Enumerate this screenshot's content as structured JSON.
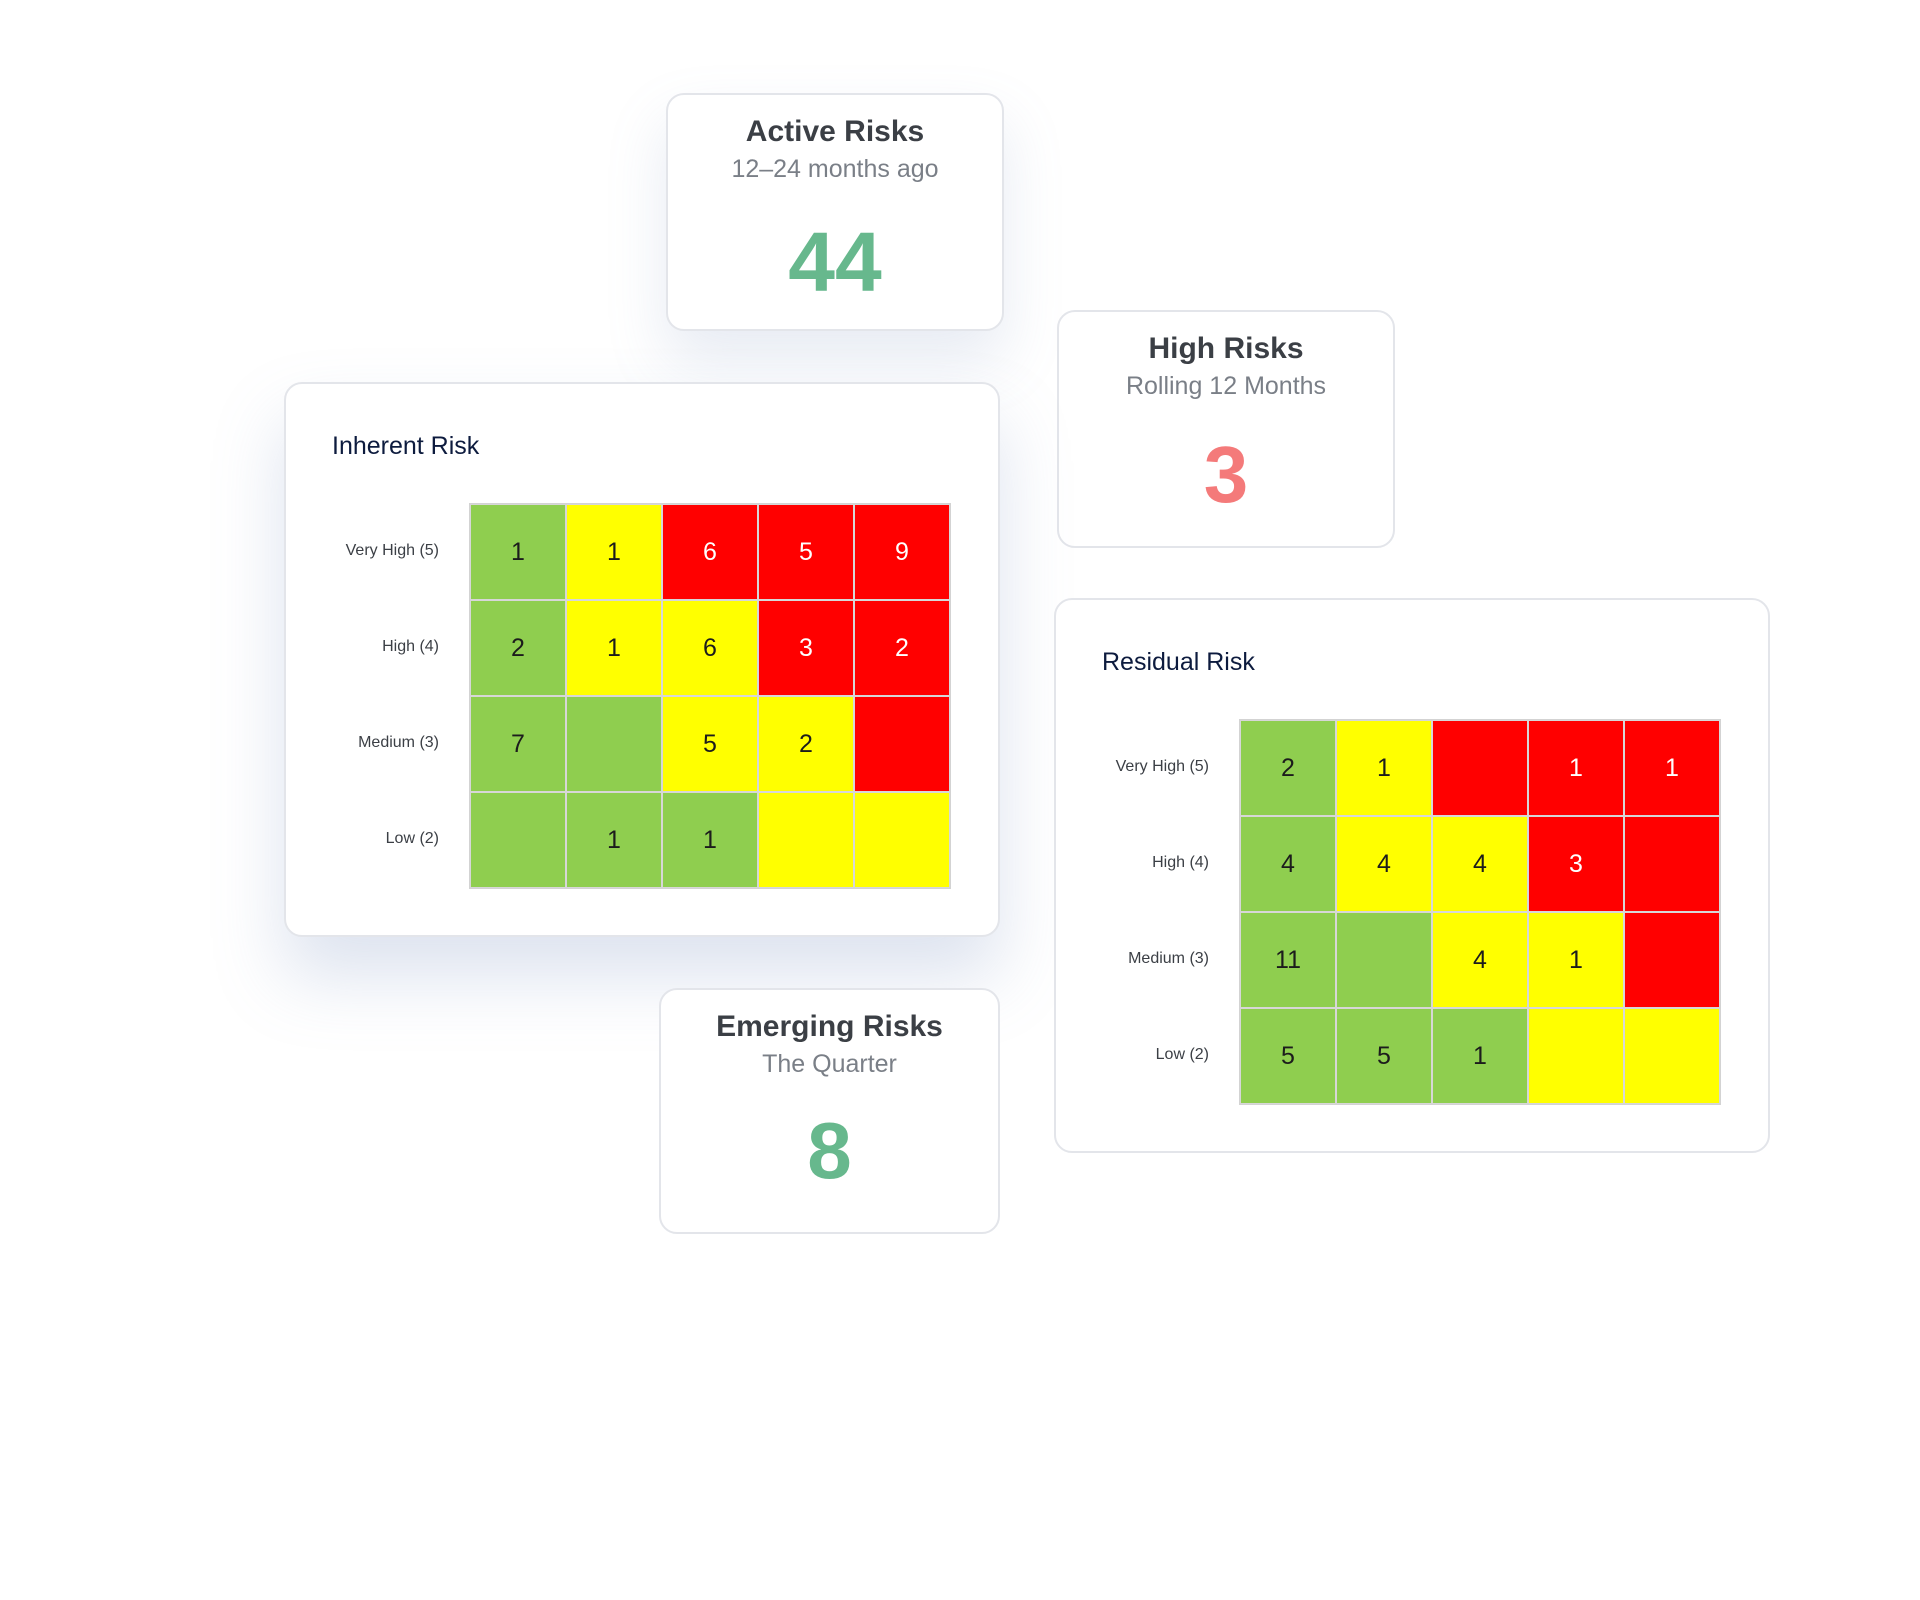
{
  "colors": {
    "green": "#8fce4f",
    "yellow": "#ffff00",
    "red": "#ff0000",
    "value_green": "#67b88d",
    "value_red": "#f47a7a"
  },
  "stats": {
    "active": {
      "title": "Active Risks",
      "subtitle": "12–24 months ago",
      "value": "44"
    },
    "high": {
      "title": "High Risks",
      "subtitle": "Rolling 12 Months",
      "value": "3"
    },
    "emerging": {
      "title": "Emerging Risks",
      "subtitle": "The Quarter",
      "value": "8"
    }
  },
  "chart_data": [
    {
      "type": "heatmap",
      "title": "Inherent Risk",
      "rows": [
        "Very High (5)",
        "High (4)",
        "Medium (3)",
        "Low (2)"
      ],
      "values": [
        [
          1,
          1,
          6,
          5,
          9
        ],
        [
          2,
          1,
          6,
          3,
          2
        ],
        [
          7,
          null,
          5,
          2,
          null
        ],
        [
          null,
          1,
          1,
          null,
          null
        ]
      ],
      "cell_colors": [
        [
          "green",
          "yellow",
          "red",
          "red",
          "red"
        ],
        [
          "green",
          "yellow",
          "yellow",
          "red",
          "red"
        ],
        [
          "green",
          "green",
          "yellow",
          "yellow",
          "red"
        ],
        [
          "green",
          "green",
          "green",
          "yellow",
          "yellow"
        ]
      ]
    },
    {
      "type": "heatmap",
      "title": "Residual Risk",
      "rows": [
        "Very High (5)",
        "High (4)",
        "Medium (3)",
        "Low (2)"
      ],
      "values": [
        [
          2,
          1,
          null,
          1,
          1
        ],
        [
          4,
          4,
          4,
          3,
          null
        ],
        [
          11,
          null,
          4,
          1,
          null
        ],
        [
          5,
          5,
          1,
          null,
          null
        ]
      ],
      "cell_colors": [
        [
          "green",
          "yellow",
          "red",
          "red",
          "red"
        ],
        [
          "green",
          "yellow",
          "yellow",
          "red",
          "red"
        ],
        [
          "green",
          "green",
          "yellow",
          "yellow",
          "red"
        ],
        [
          "green",
          "green",
          "green",
          "yellow",
          "yellow"
        ]
      ]
    }
  ]
}
